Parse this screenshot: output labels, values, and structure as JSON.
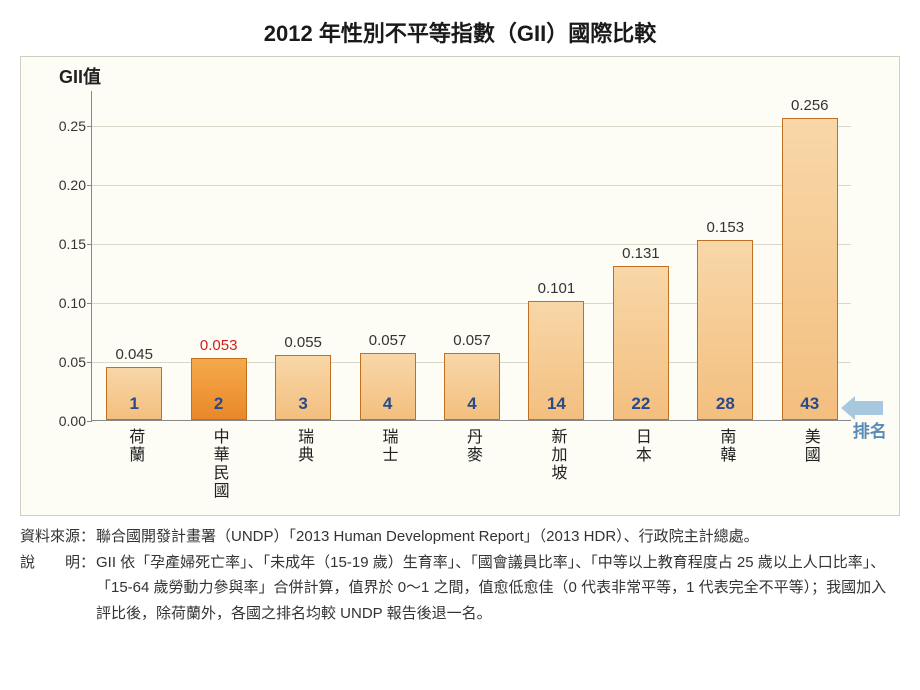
{
  "title": "2012 年性別不平等指數（GII）國際比較",
  "chart": {
    "type": "bar",
    "yaxis_title": "GII值",
    "ylim_max": 0.28,
    "yticks": [
      0.0,
      0.05,
      0.1,
      0.15,
      0.2,
      0.25
    ],
    "ytick_labels": [
      "0.00",
      "0.05",
      "0.10",
      "0.15",
      "0.20",
      "0.25"
    ],
    "background_color": "#fdfdf5",
    "grid_color": "#d8d8c8",
    "axis_color": "#888888",
    "bar_colors": {
      "default_fill": "linear-gradient(to bottom,#f8d7a8,#f3bf7f)",
      "highlight_fill": "linear-gradient(to bottom,#f6a94a,#e8892a)",
      "border": "#c07020"
    },
    "value_label_color": "#333333",
    "value_label_highlight_color": "#d02020",
    "rank_label_color": "#2a4a8a",
    "legend_arrow_color": "#5a8ab8",
    "label_fontsize": 15,
    "rank_legend_text": "排名",
    "categories": [
      "荷蘭",
      "中華民國",
      "瑞典",
      "瑞士",
      "丹麥",
      "新加坡",
      "日本",
      "南韓",
      "美國"
    ],
    "values": [
      0.045,
      0.053,
      0.055,
      0.057,
      0.057,
      0.101,
      0.131,
      0.153,
      0.256
    ],
    "value_labels": [
      "0.045",
      "0.053",
      "0.055",
      "0.057",
      "0.057",
      "0.101",
      "0.131",
      "0.153",
      "0.256"
    ],
    "ranks": [
      "1",
      "2",
      "3",
      "4",
      "4",
      "14",
      "22",
      "28",
      "43"
    ],
    "highlight_index": 1
  },
  "footnotes": {
    "source_label": "資料來源：",
    "source_text": "聯合國開發計畫署（UNDP）「2013 Human Development Report」（2013 HDR）、行政院主計總處。",
    "note_label": "說　　明：",
    "note_text_1": "GII 依「孕產婦死亡率」、「未成年（15-19 歲）生育率」、「國會議員比率」、「中等以上教育程度占 25 歲以上人口比率」、「15-64 歲勞動力參與率」合併計算，值界於 0～1 之間，值愈低愈佳（0 代表非常平等，1 代表完全不平等）；我國加入評比後，除荷蘭外，各國之排名均較 UNDP 報告後退一名。"
  }
}
